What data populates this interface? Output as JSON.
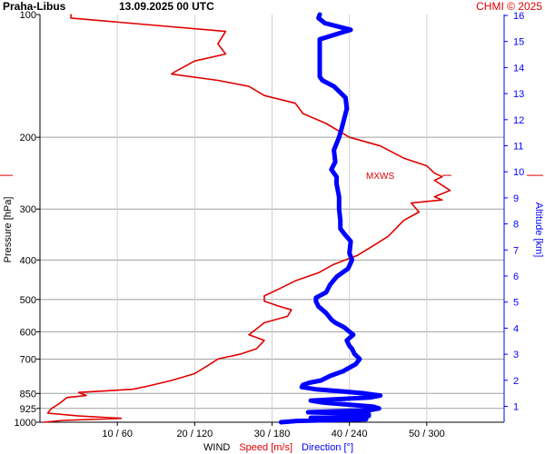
{
  "header": {
    "station": "Praha-Libus",
    "datetime": "13.09.2025 00 UTC",
    "copyright": "CHMI © 2025"
  },
  "chart_data": {
    "type": "line",
    "y_left": {
      "label": "Pressure [hPa]",
      "scale": "log",
      "range": [
        1000,
        100
      ],
      "ticks": [
        100,
        200,
        300,
        400,
        500,
        600,
        700,
        850,
        925,
        1000
      ]
    },
    "y_right": {
      "label": "Altitude [km]",
      "ticks": [
        1,
        2,
        3,
        4,
        5,
        6,
        7,
        8,
        9,
        10,
        11,
        12,
        13,
        14,
        15,
        16
      ]
    },
    "x_axis": {
      "label": "WIND",
      "speed_label": "Speed [m/s]",
      "direction_label": "Direction [°]",
      "speed_range": [
        0,
        60
      ],
      "direction_range": [
        0,
        360
      ],
      "ticks": [
        "10 / 60",
        "20 / 120",
        "30 / 180",
        "40 / 240",
        "50 / 300"
      ]
    },
    "annotation": "MXWS",
    "mxws_pressure": 248,
    "grid": true,
    "series": [
      {
        "name": "Speed [m/s]",
        "color": "#e00000",
        "points": [
          [
            1000,
            0.5
          ],
          [
            990,
            3
          ],
          [
            978,
            10.5
          ],
          [
            965,
            5
          ],
          [
            950,
            1
          ],
          [
            925,
            1.5
          ],
          [
            900,
            2.5
          ],
          [
            870,
            3.5
          ],
          [
            860,
            6
          ],
          [
            845,
            5
          ],
          [
            830,
            12
          ],
          [
            815,
            14
          ],
          [
            790,
            17
          ],
          [
            760,
            20
          ],
          [
            720,
            22
          ],
          [
            700,
            23
          ],
          [
            680,
            26
          ],
          [
            660,
            28
          ],
          [
            630,
            29
          ],
          [
            620,
            28
          ],
          [
            610,
            27
          ],
          [
            590,
            28
          ],
          [
            570,
            29
          ],
          [
            550,
            32
          ],
          [
            530,
            32.5
          ],
          [
            520,
            31
          ],
          [
            505,
            29
          ],
          [
            490,
            29
          ],
          [
            470,
            31
          ],
          [
            450,
            33
          ],
          [
            430,
            36
          ],
          [
            410,
            38
          ],
          [
            390,
            41
          ],
          [
            370,
            43
          ],
          [
            350,
            45
          ],
          [
            335,
            46
          ],
          [
            320,
            47
          ],
          [
            305,
            49
          ],
          [
            290,
            48
          ],
          [
            285,
            52
          ],
          [
            280,
            51
          ],
          [
            270,
            53
          ],
          [
            255,
            51
          ],
          [
            250,
            52
          ],
          [
            245,
            51
          ],
          [
            235,
            50
          ],
          [
            225,
            47
          ],
          [
            210,
            44
          ],
          [
            200,
            40
          ],
          [
            185,
            37
          ],
          [
            175,
            34
          ],
          [
            165,
            33
          ],
          [
            158,
            29
          ],
          [
            150,
            27
          ],
          [
            145,
            23
          ],
          [
            140,
            17
          ],
          [
            138,
            17.5
          ],
          [
            130,
            20
          ],
          [
            125,
            24
          ],
          [
            118,
            23
          ],
          [
            110,
            24
          ],
          [
            102,
            4
          ],
          [
            100,
            4
          ]
        ]
      },
      {
        "name": "Direction [°]",
        "color": "#0000ff",
        "points": [
          [
            1000,
            187
          ],
          [
            993,
            199
          ],
          [
            983,
            253
          ],
          [
            975,
            210
          ],
          [
            965,
            255
          ],
          [
            955,
            255
          ],
          [
            945,
            208
          ],
          [
            935,
            255
          ],
          [
            925,
            263
          ],
          [
            915,
            258
          ],
          [
            905,
            238
          ],
          [
            895,
            220
          ],
          [
            885,
            210
          ],
          [
            880,
            224
          ],
          [
            870,
            256
          ],
          [
            860,
            264
          ],
          [
            850,
            252
          ],
          [
            840,
            234
          ],
          [
            830,
            214
          ],
          [
            820,
            203
          ],
          [
            810,
            204
          ],
          [
            800,
            209
          ],
          [
            790,
            218
          ],
          [
            770,
            225
          ],
          [
            750,
            235
          ],
          [
            720,
            245
          ],
          [
            700,
            248
          ],
          [
            680,
            244
          ],
          [
            660,
            242
          ],
          [
            650,
            240
          ],
          [
            630,
            238
          ],
          [
            610,
            243
          ],
          [
            600,
            240
          ],
          [
            585,
            236
          ],
          [
            570,
            229
          ],
          [
            560,
            226
          ],
          [
            540,
            222
          ],
          [
            520,
            216
          ],
          [
            505,
            214
          ],
          [
            495,
            214
          ],
          [
            480,
            222
          ],
          [
            460,
            225
          ],
          [
            440,
            230
          ],
          [
            420,
            239
          ],
          [
            400,
            242
          ],
          [
            385,
            240
          ],
          [
            360,
            241
          ],
          [
            345,
            236
          ],
          [
            335,
            233
          ],
          [
            320,
            233
          ],
          [
            300,
            232
          ],
          [
            280,
            232
          ],
          [
            260,
            230
          ],
          [
            250,
            230
          ],
          [
            240,
            226
          ],
          [
            230,
            229
          ],
          [
            215,
            228
          ],
          [
            200,
            232
          ],
          [
            190,
            234
          ],
          [
            180,
            236
          ],
          [
            170,
            238
          ],
          [
            160,
            237
          ],
          [
            150,
            228
          ],
          [
            145,
            219
          ],
          [
            142,
            217
          ],
          [
            135,
            217
          ],
          [
            125,
            217
          ],
          [
            115,
            217
          ],
          [
            109,
            241
          ],
          [
            105,
            221
          ],
          [
            102,
            216
          ],
          [
            100,
            217
          ]
        ]
      }
    ]
  }
}
